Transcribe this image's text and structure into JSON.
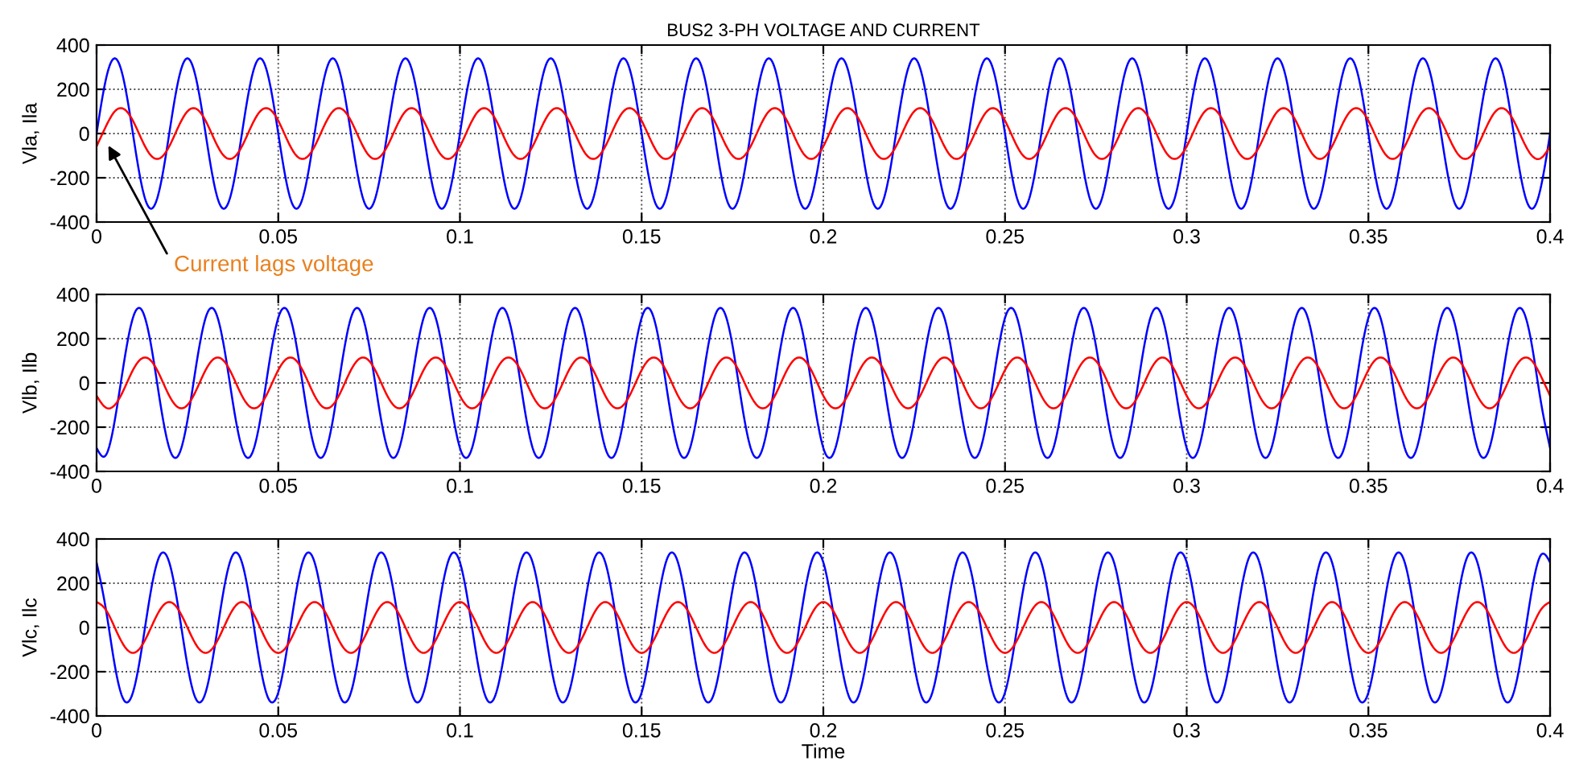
{
  "chart_data": [
    {
      "type": "line",
      "title": "BUS2 3-PH VOLTAGE AND CURRENT",
      "ylabel": "Vla, Ila",
      "xlim": [
        0,
        0.4
      ],
      "xticks": [
        0,
        0.05,
        0.1,
        0.15,
        0.2,
        0.25,
        0.3,
        0.35,
        0.4
      ],
      "ylim": [
        -400,
        400
      ],
      "yticks": [
        -400,
        -200,
        0,
        200,
        400
      ],
      "grid": true,
      "annotations": [
        "Current lags voltage"
      ],
      "x": [
        0,
        0.0025,
        0.005,
        0.0075,
        0.01,
        0.0125,
        0.015,
        0.0175,
        0.02,
        0.0225,
        0.025,
        0.0275,
        0.03,
        0.0325,
        0.035,
        0.0375,
        0.04,
        0.0425,
        0.045,
        0.0475,
        0.05,
        0.0525,
        0.055,
        0.0575,
        0.06,
        0.0625,
        0.065,
        0.0675,
        0.07,
        0.0725,
        0.075,
        0.0775,
        0.08,
        0.0825,
        0.085,
        0.0875,
        0.09,
        0.0925,
        0.095,
        0.0975,
        0.1,
        0.1025,
        0.105,
        0.1075,
        0.11,
        0.1125,
        0.115,
        0.1175,
        0.12,
        0.1225,
        0.125,
        0.1275,
        0.13,
        0.1325,
        0.135,
        0.1375,
        0.14,
        0.1425,
        0.145,
        0.1475,
        0.15,
        0.1525,
        0.155,
        0.1575,
        0.16,
        0.1625,
        0.165,
        0.1675,
        0.17,
        0.1725,
        0.175,
        0.1775,
        0.18,
        0.1825,
        0.185,
        0.1875,
        0.19,
        0.1925,
        0.195,
        0.1975,
        0.2,
        0.2025,
        0.205,
        0.2075,
        0.21,
        0.2125,
        0.215,
        0.2175,
        0.22,
        0.2225,
        0.225,
        0.2275,
        0.23,
        0.2325,
        0.235,
        0.2375,
        0.24,
        0.2425,
        0.245,
        0.2475,
        0.25,
        0.2525,
        0.255,
        0.2575,
        0.26,
        0.2625,
        0.265,
        0.2675,
        0.27,
        0.2725,
        0.275,
        0.2775,
        0.28,
        0.2825,
        0.285,
        0.2875,
        0.29,
        0.2925,
        0.295,
        0.2975,
        0.3,
        0.3025,
        0.305,
        0.3075,
        0.31,
        0.3125,
        0.315,
        0.3175,
        0.32,
        0.3225,
        0.325,
        0.3275,
        0.33,
        0.3325,
        0.335,
        0.3375,
        0.34,
        0.3425,
        0.345,
        0.3475,
        0.35,
        0.3525,
        0.355,
        0.3575,
        0.36,
        0.3625,
        0.365,
        0.3675,
        0.37,
        0.3725,
        0.375,
        0.3775,
        0.38,
        0.3825,
        0.385,
        0.3875,
        0.39,
        0.3925,
        0.395,
        0.3975,
        0.4
      ],
      "series": [
        {
          "color": "#0000ff",
          "values": [
            0,
            240,
            340,
            240,
            0,
            -240,
            -340,
            -240,
            0,
            240,
            340,
            240,
            0,
            -240,
            -340,
            -240,
            0,
            240,
            340,
            240,
            0,
            -240,
            -340,
            -240,
            0,
            240,
            340,
            240,
            0,
            -240,
            -340,
            -240,
            0,
            240,
            340,
            240,
            0,
            -240,
            -340,
            -240,
            0,
            240,
            340,
            240,
            0,
            -240,
            -340,
            -240,
            0,
            240,
            340,
            240,
            0,
            -240,
            -340,
            -240,
            0,
            240,
            340,
            240,
            0,
            -240,
            -340,
            -240,
            0,
            240,
            340,
            240,
            0,
            -240,
            -340,
            -240,
            0,
            240,
            340,
            240,
            0,
            -240,
            -340,
            -240,
            0,
            240,
            340,
            240,
            0,
            -240,
            -340,
            -240,
            0,
            240,
            340,
            240,
            0,
            -240,
            -340,
            -240,
            0,
            240,
            340,
            240,
            0,
            -240,
            -340,
            -240,
            0,
            240,
            340,
            240,
            0,
            -240,
            -340,
            -240,
            0,
            240,
            340,
            240,
            0,
            -240,
            -340,
            -240,
            0,
            240,
            340,
            240,
            0,
            -240,
            -340,
            -240,
            0,
            240,
            340,
            240,
            0,
            -240,
            -340,
            -240,
            0,
            240,
            340,
            240,
            0,
            -240,
            -340,
            -240,
            0,
            240,
            340,
            240,
            0,
            -240,
            -340,
            -240,
            0,
            240,
            340,
            240,
            0,
            -240,
            -340,
            -240,
            0
          ]
        },
        {
          "color": "#ff0000",
          "values": [
            -58,
            30,
            100,
            111,
            58,
            -30,
            -100,
            -111,
            -58,
            30,
            100,
            111,
            58,
            -30,
            -100,
            -111,
            -58,
            30,
            100,
            111,
            58,
            -30,
            -100,
            -111,
            -58,
            30,
            100,
            111,
            58,
            -30,
            -100,
            -111,
            -58,
            30,
            100,
            111,
            58,
            -30,
            -100,
            -111,
            -58,
            30,
            100,
            111,
            58,
            -30,
            -100,
            -111,
            -58,
            30,
            100,
            111,
            58,
            -30,
            -100,
            -111,
            -58,
            30,
            100,
            111,
            58,
            -30,
            -100,
            -111,
            -58,
            30,
            100,
            111,
            58,
            -30,
            -100,
            -111,
            -58,
            30,
            100,
            111,
            58,
            -30,
            -100,
            -111,
            -58,
            30,
            100,
            111,
            58,
            -30,
            -100,
            -111,
            -58,
            30,
            100,
            111,
            58,
            -30,
            -100,
            -111,
            -58,
            30,
            100,
            111,
            58,
            -30,
            -100,
            -111,
            -58,
            30,
            100,
            111,
            58,
            -30,
            -100,
            -111,
            -58,
            30,
            100,
            111,
            58,
            -30,
            -100,
            -111,
            -58,
            30,
            100,
            111,
            58,
            -30,
            -100,
            -111,
            -58,
            30,
            100,
            111,
            58,
            -30,
            -100,
            -111,
            -58,
            30,
            100,
            111,
            58,
            -30,
            -100,
            -111,
            -58,
            30,
            100,
            111,
            58,
            -30,
            -100,
            -111,
            -58,
            30,
            100,
            111,
            58,
            -30,
            -100,
            -111,
            -58
          ]
        }
      ]
    },
    {
      "type": "line",
      "ylabel": "Vlb, Ilb",
      "xlim": [
        0,
        0.4
      ],
      "xticks": [
        0,
        0.05,
        0.1,
        0.15,
        0.2,
        0.25,
        0.3,
        0.35,
        0.4
      ],
      "ylim": [
        -400,
        400
      ],
      "yticks": [
        -400,
        -200,
        0,
        200,
        400
      ],
      "grid": true,
      "x": [
        0,
        0.0025,
        0.005,
        0.0075,
        0.01,
        0.0125,
        0.015,
        0.0175,
        0.02,
        0.0225,
        0.025,
        0.0275,
        0.03,
        0.0325,
        0.035,
        0.0375,
        0.04,
        0.0425,
        0.045,
        0.0475,
        0.05,
        0.0525,
        0.055,
        0.0575,
        0.06,
        0.0625,
        0.065,
        0.0675,
        0.07,
        0.0725,
        0.075,
        0.0775,
        0.08,
        0.0825,
        0.085,
        0.0875,
        0.09,
        0.0925,
        0.095,
        0.0975,
        0.1,
        0.1025,
        0.105,
        0.1075,
        0.11,
        0.1125,
        0.115,
        0.1175,
        0.12,
        0.1225,
        0.125,
        0.1275,
        0.13,
        0.1325,
        0.135,
        0.1375,
        0.14,
        0.1425,
        0.145,
        0.1475,
        0.15,
        0.1525,
        0.155,
        0.1575,
        0.16,
        0.1625,
        0.165,
        0.1675,
        0.17,
        0.1725,
        0.175,
        0.1775,
        0.18,
        0.1825,
        0.185,
        0.1875,
        0.19,
        0.1925,
        0.195,
        0.1975,
        0.2,
        0.2025,
        0.205,
        0.2075,
        0.21,
        0.2125,
        0.215,
        0.2175,
        0.22,
        0.2225,
        0.225,
        0.2275,
        0.23,
        0.2325,
        0.235,
        0.2375,
        0.24,
        0.2425,
        0.245,
        0.2475,
        0.25,
        0.2525,
        0.255,
        0.2575,
        0.26,
        0.2625,
        0.265,
        0.2675,
        0.27,
        0.2725,
        0.275,
        0.2775,
        0.28,
        0.2825,
        0.285,
        0.2875,
        0.29,
        0.2925,
        0.295,
        0.2975,
        0.3,
        0.3025,
        0.305,
        0.3075,
        0.31,
        0.3125,
        0.315,
        0.3175,
        0.32,
        0.3225,
        0.325,
        0.3275,
        0.33,
        0.3325,
        0.335,
        0.3375,
        0.34,
        0.3425,
        0.345,
        0.3475,
        0.35,
        0.3525,
        0.355,
        0.3575,
        0.36,
        0.3625,
        0.365,
        0.3675,
        0.37,
        0.3725,
        0.375,
        0.3775,
        0.38,
        0.3825,
        0.385,
        0.3875,
        0.39,
        0.3925,
        0.395,
        0.3975,
        0.4
      ],
      "series": [
        {
          "color": "#0000ff",
          "values": [
            -294,
            -328,
            -170,
            88,
            294,
            328,
            170,
            -88,
            -294,
            -328,
            -170,
            88,
            294,
            328,
            170,
            -88,
            -294,
            -328,
            -170,
            88,
            294,
            328,
            170,
            -88,
            -294,
            -328,
            -170,
            88,
            294,
            328,
            170,
            -88,
            -294,
            -328,
            -170,
            88,
            294,
            328,
            170,
            -88,
            -294,
            -328,
            -170,
            88,
            294,
            328,
            170,
            -88,
            -294,
            -328,
            -170,
            88,
            294,
            328,
            170,
            -88,
            -294,
            -328,
            -170,
            88,
            294,
            328,
            170,
            -88,
            -294,
            -328,
            -170,
            88,
            294,
            328,
            170,
            -88,
            -294,
            -328,
            -170,
            88,
            294,
            328,
            170,
            -88,
            -294,
            -328,
            -170,
            88,
            294,
            328,
            170,
            -88,
            -294,
            -328,
            -170,
            88,
            294,
            328,
            170,
            -88,
            -294,
            -328,
            -170,
            88,
            294,
            328,
            170,
            -88,
            -294,
            -328,
            -170,
            88,
            294,
            328,
            170,
            -88,
            -294,
            -328,
            -170,
            88,
            294,
            328,
            170,
            -88,
            -294,
            -328,
            -170,
            88,
            294,
            328,
            170,
            -88,
            -294,
            -328,
            -170,
            88,
            294,
            328,
            170,
            -88,
            -294,
            -328,
            -170,
            88,
            294,
            328,
            170,
            -88,
            -294,
            -328,
            -170,
            88,
            294,
            328,
            170,
            -88,
            -294,
            -328,
            -170,
            88,
            294,
            328,
            170,
            -88,
            -294
          ]
        },
        {
          "color": "#ff0000",
          "values": [
            -58,
            -111,
            -100,
            -30,
            58,
            111,
            100,
            30,
            -58,
            -111,
            -100,
            -30,
            58,
            111,
            100,
            30,
            -58,
            -111,
            -100,
            -30,
            58,
            111,
            100,
            30,
            -58,
            -111,
            -100,
            -30,
            58,
            111,
            100,
            30,
            -58,
            -111,
            -100,
            -30,
            58,
            111,
            100,
            30,
            -58,
            -111,
            -100,
            -30,
            58,
            111,
            100,
            30,
            -58,
            -111,
            -100,
            -30,
            58,
            111,
            100,
            30,
            -58,
            -111,
            -100,
            -30,
            58,
            111,
            100,
            30,
            -58,
            -111,
            -100,
            -30,
            58,
            111,
            100,
            30,
            -58,
            -111,
            -100,
            -30,
            58,
            111,
            100,
            30,
            -58,
            -111,
            -100,
            -30,
            58,
            111,
            100,
            30,
            -58,
            -111,
            -100,
            -30,
            58,
            111,
            100,
            30,
            -58,
            -111,
            -100,
            -30,
            58,
            111,
            100,
            30,
            -58,
            -111,
            -100,
            -30,
            58,
            111,
            100,
            30,
            -58,
            -111,
            -100,
            -30,
            58,
            111,
            100,
            30,
            -58,
            -111,
            -100,
            -30,
            58,
            111,
            100,
            30,
            -58,
            -111,
            -100,
            -30,
            58,
            111,
            100,
            30,
            -58,
            -111,
            -100,
            -30,
            58,
            111,
            100,
            30,
            -58,
            -111,
            -100,
            -30,
            58,
            111,
            100,
            30,
            -58,
            -111,
            -100,
            -30,
            58,
            111,
            100,
            30,
            -58
          ]
        }
      ]
    },
    {
      "type": "line",
      "ylabel": "Vlc, Ilc",
      "xlabel": "Time",
      "xlim": [
        0,
        0.4
      ],
      "xticks": [
        0,
        0.05,
        0.1,
        0.15,
        0.2,
        0.25,
        0.3,
        0.35,
        0.4
      ],
      "ylim": [
        -400,
        400
      ],
      "yticks": [
        -400,
        -200,
        0,
        200,
        400
      ],
      "grid": true,
      "x": [
        0,
        0.0025,
        0.005,
        0.0075,
        0.01,
        0.0125,
        0.015,
        0.0175,
        0.02,
        0.0225,
        0.025,
        0.0275,
        0.03,
        0.0325,
        0.035,
        0.0375,
        0.04,
        0.0425,
        0.045,
        0.0475,
        0.05,
        0.0525,
        0.055,
        0.0575,
        0.06,
        0.0625,
        0.065,
        0.0675,
        0.07,
        0.0725,
        0.075,
        0.0775,
        0.08,
        0.0825,
        0.085,
        0.0875,
        0.09,
        0.0925,
        0.095,
        0.0975,
        0.1,
        0.1025,
        0.105,
        0.1075,
        0.11,
        0.1125,
        0.115,
        0.1175,
        0.12,
        0.1225,
        0.125,
        0.1275,
        0.13,
        0.1325,
        0.135,
        0.1375,
        0.14,
        0.1425,
        0.145,
        0.1475,
        0.15,
        0.1525,
        0.155,
        0.1575,
        0.16,
        0.1625,
        0.165,
        0.1675,
        0.17,
        0.1725,
        0.175,
        0.1775,
        0.18,
        0.1825,
        0.185,
        0.1875,
        0.19,
        0.1925,
        0.195,
        0.1975,
        0.2,
        0.2025,
        0.205,
        0.2075,
        0.21,
        0.2125,
        0.215,
        0.2175,
        0.22,
        0.2225,
        0.225,
        0.2275,
        0.23,
        0.2325,
        0.235,
        0.2375,
        0.24,
        0.2425,
        0.245,
        0.2475,
        0.25,
        0.2525,
        0.255,
        0.2575,
        0.26,
        0.2625,
        0.265,
        0.2675,
        0.27,
        0.2725,
        0.275,
        0.2775,
        0.28,
        0.2825,
        0.285,
        0.2875,
        0.29,
        0.2925,
        0.295,
        0.2975,
        0.3,
        0.3025,
        0.305,
        0.3075,
        0.31,
        0.3125,
        0.315,
        0.3175,
        0.32,
        0.3225,
        0.325,
        0.3275,
        0.33,
        0.3325,
        0.335,
        0.3375,
        0.34,
        0.3425,
        0.345,
        0.3475,
        0.35,
        0.3525,
        0.355,
        0.3575,
        0.36,
        0.3625,
        0.365,
        0.3675,
        0.37,
        0.3725,
        0.375,
        0.3775,
        0.38,
        0.3825,
        0.385,
        0.3875,
        0.39,
        0.3925,
        0.395,
        0.3975,
        0.4
      ],
      "series": [
        {
          "color": "#0000ff",
          "values": [
            294,
            88,
            -170,
            -328,
            -294,
            -88,
            170,
            328,
            294,
            88,
            -170,
            -328,
            -294,
            -88,
            170,
            328,
            294,
            88,
            -170,
            -328,
            -294,
            -88,
            170,
            328,
            294,
            88,
            -170,
            -328,
            -294,
            -88,
            170,
            328,
            294,
            88,
            -170,
            -328,
            -294,
            -88,
            170,
            328,
            294,
            88,
            -170,
            -328,
            -294,
            -88,
            170,
            328,
            294,
            88,
            -170,
            -328,
            -294,
            -88,
            170,
            328,
            294,
            88,
            -170,
            -328,
            -294,
            -88,
            170,
            328,
            294,
            88,
            -170,
            -328,
            -294,
            -88,
            170,
            328,
            294,
            88,
            -170,
            -328,
            -294,
            -88,
            170,
            328,
            294,
            88,
            -170,
            -328,
            -294,
            -88,
            170,
            328,
            294,
            88,
            -170,
            -328,
            -294,
            -88,
            170,
            328,
            294,
            88,
            -170,
            -328,
            -294,
            -88,
            170,
            328,
            294,
            88,
            -170,
            -328,
            -294,
            -88,
            170,
            328,
            294,
            88,
            -170,
            -328,
            -294,
            -88,
            170,
            328,
            294,
            88,
            -170,
            -328,
            -294,
            -88,
            170,
            328,
            294,
            88,
            -170,
            -328,
            -294,
            -88,
            170,
            328,
            294,
            88,
            -170,
            -328,
            -294,
            -88,
            170,
            328,
            294,
            88,
            -170,
            -328,
            -294,
            -88,
            170,
            328,
            294,
            88,
            -170,
            -328,
            -294,
            -88,
            170,
            328,
            294
          ]
        },
        {
          "color": "#ff0000",
          "values": [
            115,
            81,
            0,
            -81,
            -115,
            -81,
            0,
            81,
            115,
            81,
            0,
            -81,
            -115,
            -81,
            0,
            81,
            115,
            81,
            0,
            -81,
            -115,
            -81,
            0,
            81,
            115,
            81,
            0,
            -81,
            -115,
            -81,
            0,
            81,
            115,
            81,
            0,
            -81,
            -115,
            -81,
            0,
            81,
            115,
            81,
            0,
            -81,
            -115,
            -81,
            0,
            81,
            115,
            81,
            0,
            -81,
            -115,
            -81,
            0,
            81,
            115,
            81,
            0,
            -81,
            -115,
            -81,
            0,
            81,
            115,
            81,
            0,
            -81,
            -115,
            -81,
            0,
            81,
            115,
            81,
            0,
            -81,
            -115,
            -81,
            0,
            81,
            115,
            81,
            0,
            -81,
            -115,
            -81,
            0,
            81,
            115,
            81,
            0,
            -81,
            -115,
            -81,
            0,
            81,
            115,
            81,
            0,
            -81,
            -115,
            -81,
            0,
            81,
            115,
            81,
            0,
            -81,
            -115,
            -81,
            0,
            81,
            115,
            81,
            0,
            -81,
            -115,
            -81,
            0,
            81,
            115,
            81,
            0,
            -81,
            -115,
            -81,
            0,
            81,
            115,
            81,
            0,
            -81,
            -115,
            -81,
            0,
            81,
            115,
            81,
            0,
            -81,
            -115,
            -81,
            0,
            81,
            115,
            81,
            0,
            -81,
            -115,
            -81,
            0,
            81,
            115,
            81,
            0,
            -81,
            -115,
            -81,
            0,
            81,
            115
          ]
        }
      ]
    }
  ]
}
